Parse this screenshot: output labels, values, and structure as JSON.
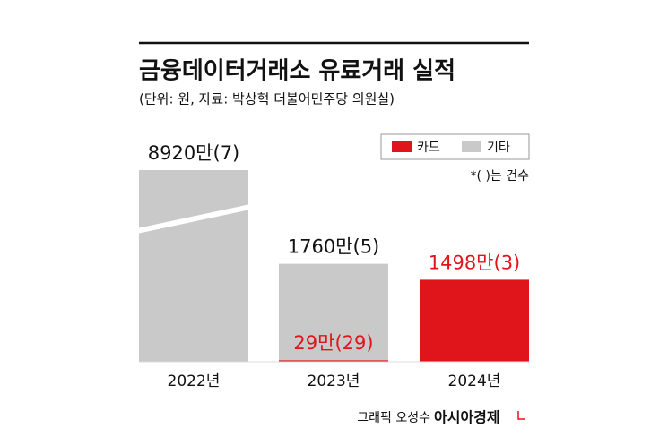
{
  "chart_data": {
    "type": "bar",
    "stacked": true,
    "title": "금융데이터거래소 유료거래 실적",
    "subtitle": "(단위: 원, 자료: 박상혁 더불어민주당 의원실)",
    "note": "*( )는 건수",
    "credit": "그래픽 오성수",
    "brand": "아시아경제",
    "categories": [
      "2022년",
      "2023년",
      "2024년"
    ],
    "series": [
      {
        "name": "카드",
        "color": "#e0151b",
        "values": [
          null,
          29,
          1498
        ],
        "value_labels": [
          null,
          "29만(29)",
          "1498만(3)"
        ]
      },
      {
        "name": "기타",
        "color": "#c9c9c9",
        "values": [
          8920,
          1760,
          null
        ],
        "value_labels": [
          "8920만(7)",
          "1760만(5)",
          null
        ]
      }
    ],
    "ylim": [
      0,
      3500
    ],
    "axis_break": true,
    "legend": "top-right"
  }
}
